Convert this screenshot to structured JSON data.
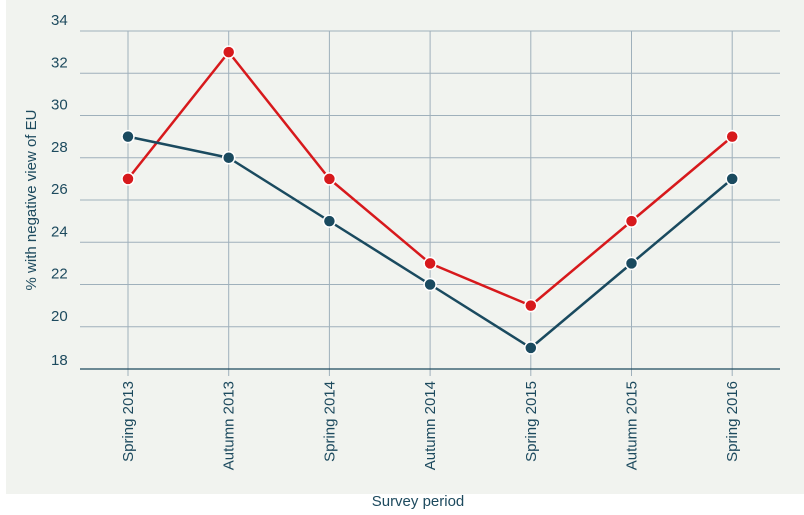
{
  "chart_data": {
    "type": "line",
    "categories": [
      "Spring 2013",
      "Autumn 2013",
      "Spring 2014",
      "Autumn 2014",
      "Spring 2015",
      "Autumn 2015",
      "Spring 2016"
    ],
    "series": [
      {
        "color": "#d7191c",
        "values": [
          27,
          33,
          27,
          23,
          21,
          25,
          29
        ]
      },
      {
        "color": "#1a4a5f",
        "values": [
          29,
          28,
          25,
          22,
          19,
          23,
          27
        ]
      }
    ],
    "ylabel": "% with negative view of EU",
    "xlabel": "Survey period",
    "ylim": [
      18,
      34
    ],
    "yticks": [
      18,
      20,
      22,
      24,
      26,
      28,
      30,
      32,
      34
    ],
    "grid": true,
    "axis_color": "#1d4a5e",
    "grid_color": "#9fb0bb"
  }
}
